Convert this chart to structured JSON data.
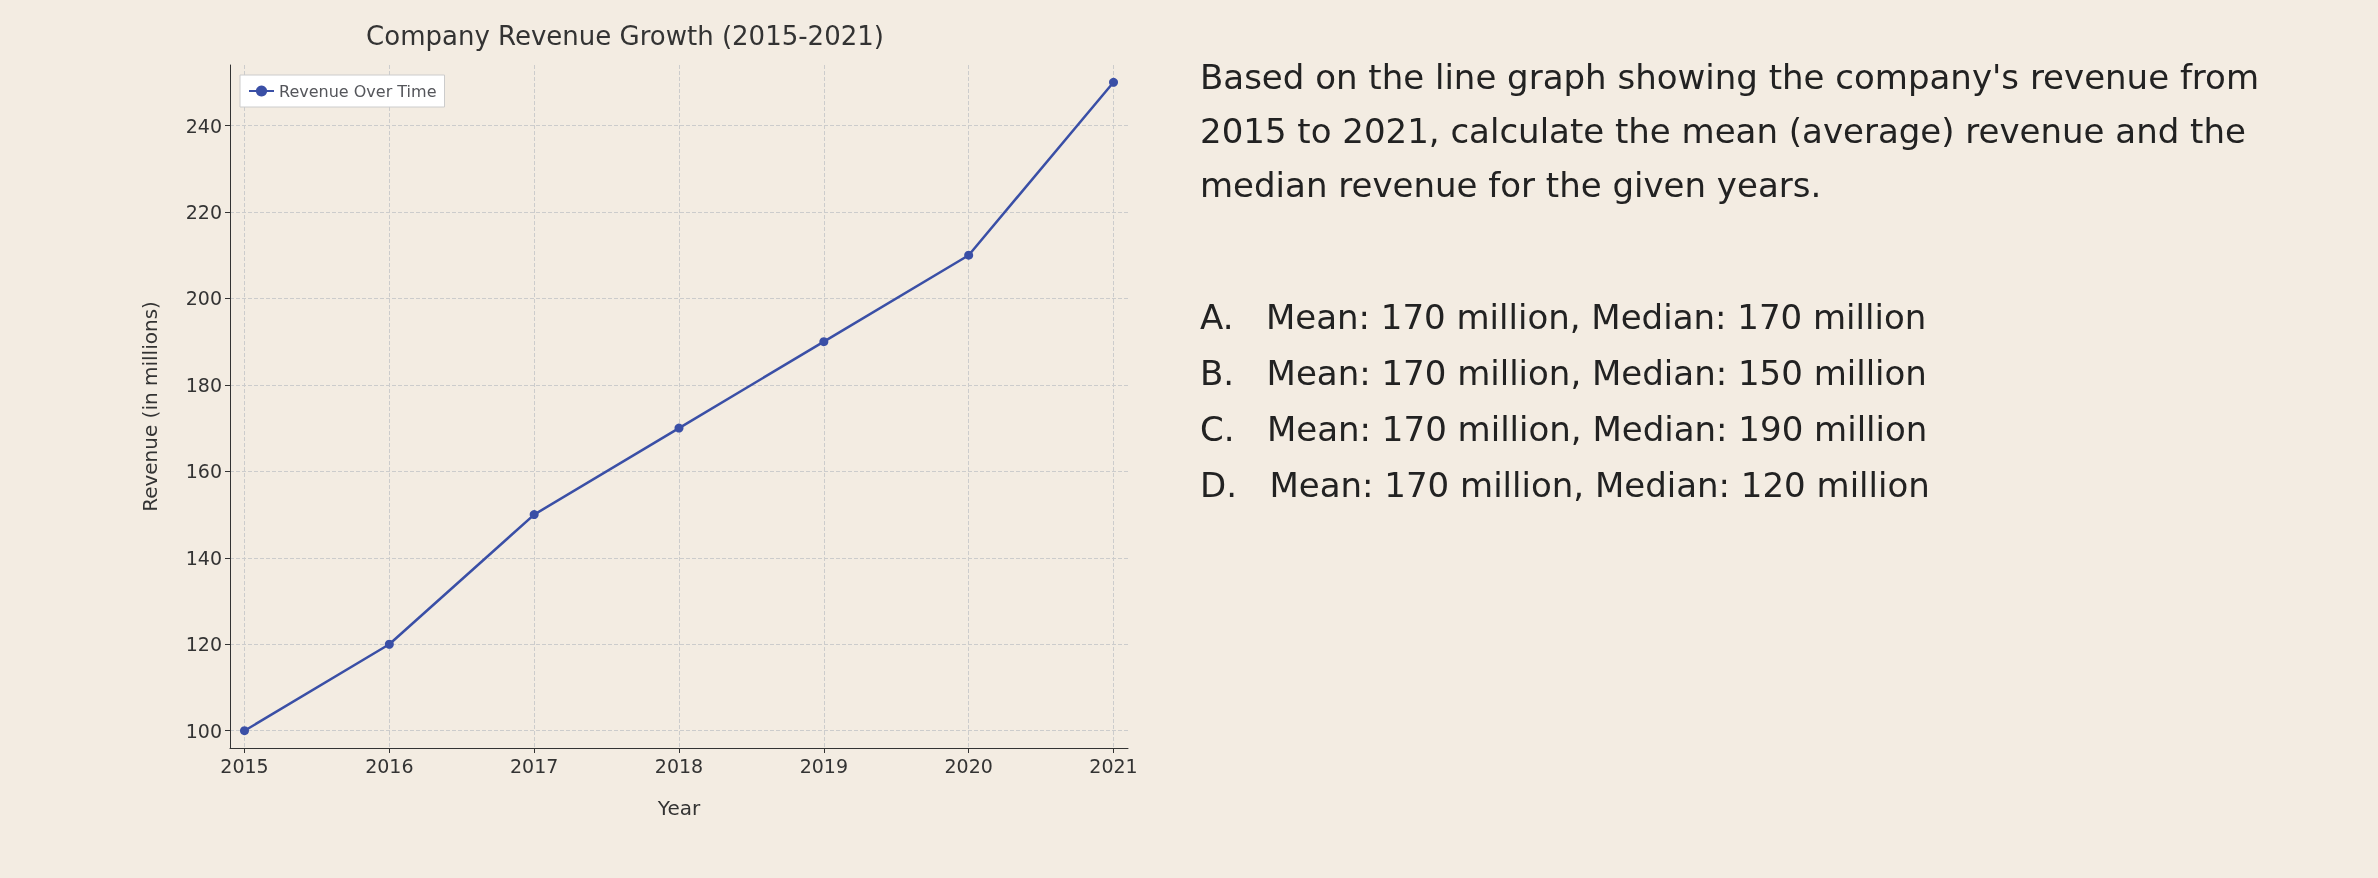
{
  "chart_data": {
    "type": "line",
    "title": "Company Revenue Growth (2015-2021)",
    "xlabel": "Year",
    "ylabel": "Revenue (in millions)",
    "x": [
      2015,
      2016,
      2017,
      2018,
      2019,
      2020,
      2021
    ],
    "series": [
      {
        "name": "Revenue Over Time",
        "color": "#3a4fa6",
        "values": [
          100,
          120,
          150,
          170,
          190,
          210,
          250
        ]
      }
    ],
    "xlim": [
      2014.9,
      2021.1
    ],
    "xticks": [
      2015,
      2016,
      2017,
      2018,
      2019,
      2020,
      2021
    ],
    "ylim": [
      96,
      254
    ],
    "yticks": [
      100,
      120,
      140,
      160,
      180,
      200,
      220,
      240
    ],
    "grid": true,
    "legend": "top left",
    "marker": "circle",
    "line_style": "solid",
    "annotations": [
      "Based on the line graph showing the company's revenue from 2015 to 2021, calculate the mean (average) revenue and the median revenue for the given years.",
      "A.   Mean: 170 million, Median: 170 million",
      "B.   Mean: 170 million, Median: 150 million",
      "C.   Mean: 170 million, Median: 190 million",
      "D.   Mean: 170 million, Median: 120 million"
    ]
  }
}
